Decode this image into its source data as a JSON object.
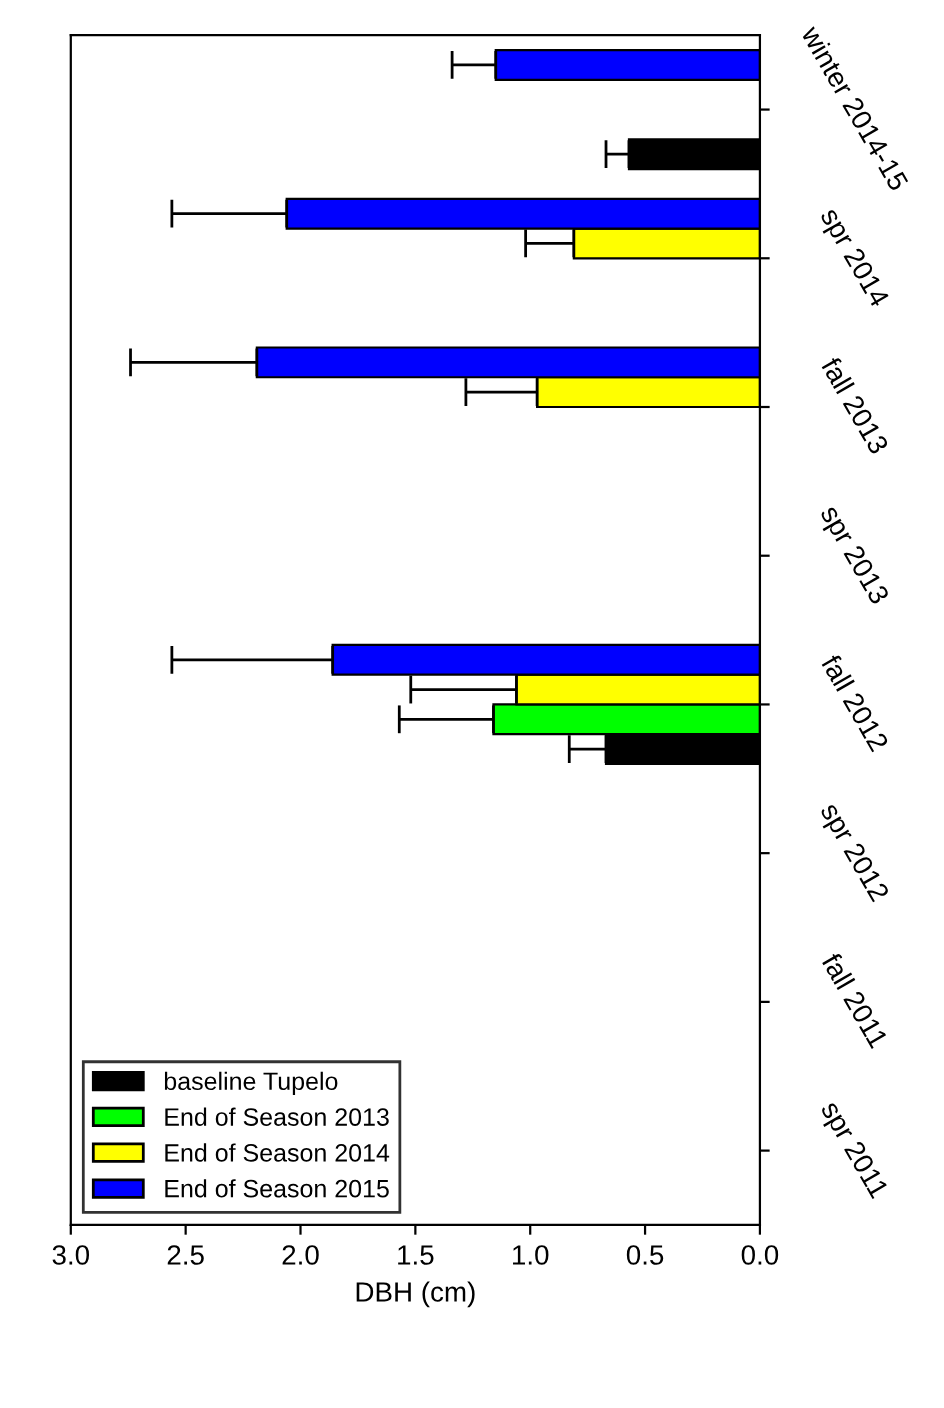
{
  "chart_data": {
    "type": "bar",
    "orientation": "horizontal",
    "xlabel": "DBH (cm)",
    "categories": [
      "winter 2014-15",
      "spr 2014",
      "fall 2013",
      "spr 2013",
      "fall 2012",
      "spr 2012",
      "fall 2011",
      "spr 2011"
    ],
    "series": [
      {
        "name": "baseline Tupelo",
        "color": "#000000",
        "values": [
          0.57,
          null,
          null,
          null,
          0.67,
          null,
          null,
          null
        ],
        "errors": [
          [
            0.57,
            0.67
          ],
          null,
          null,
          null,
          [
            0.67,
            0.83
          ],
          null,
          null,
          null
        ]
      },
      {
        "name": "End of Season 2013",
        "color": "#00ff00",
        "values": [
          null,
          null,
          null,
          null,
          1.16,
          null,
          null,
          null
        ],
        "errors": [
          null,
          null,
          null,
          null,
          [
            1.16,
            1.57
          ],
          null,
          null,
          null
        ]
      },
      {
        "name": "End of Season 2014",
        "color": "#ffff00",
        "values": [
          null,
          0.81,
          0.97,
          null,
          1.06,
          null,
          null,
          null
        ],
        "errors": [
          null,
          [
            0.81,
            1.02
          ],
          [
            0.97,
            1.28
          ],
          null,
          [
            1.06,
            1.52
          ],
          null,
          null,
          null
        ]
      },
      {
        "name": "End of Season 2015",
        "color": "#0000ff",
        "values": [
          1.15,
          2.06,
          2.19,
          null,
          1.86,
          null,
          null,
          null
        ],
        "errors": [
          [
            1.15,
            1.34
          ],
          [
            2.06,
            2.56
          ],
          [
            2.19,
            2.74
          ],
          null,
          [
            1.86,
            2.56
          ],
          null,
          null,
          null
        ]
      }
    ],
    "xlim": [
      3.0,
      0.0
    ],
    "xticks": [
      {
        "value": 0,
        "label": "0.0"
      },
      {
        "value": 0.5,
        "label": "0.5"
      },
      {
        "value": 1.0,
        "label": "1.0"
      },
      {
        "value": 1.5,
        "label": "1.5"
      },
      {
        "value": 2.0,
        "label": "2.0"
      },
      {
        "value": 2.5,
        "label": "2.5"
      },
      {
        "value": 3.0,
        "label": "3.0"
      }
    ],
    "grid": false,
    "legend": "bottom left"
  }
}
